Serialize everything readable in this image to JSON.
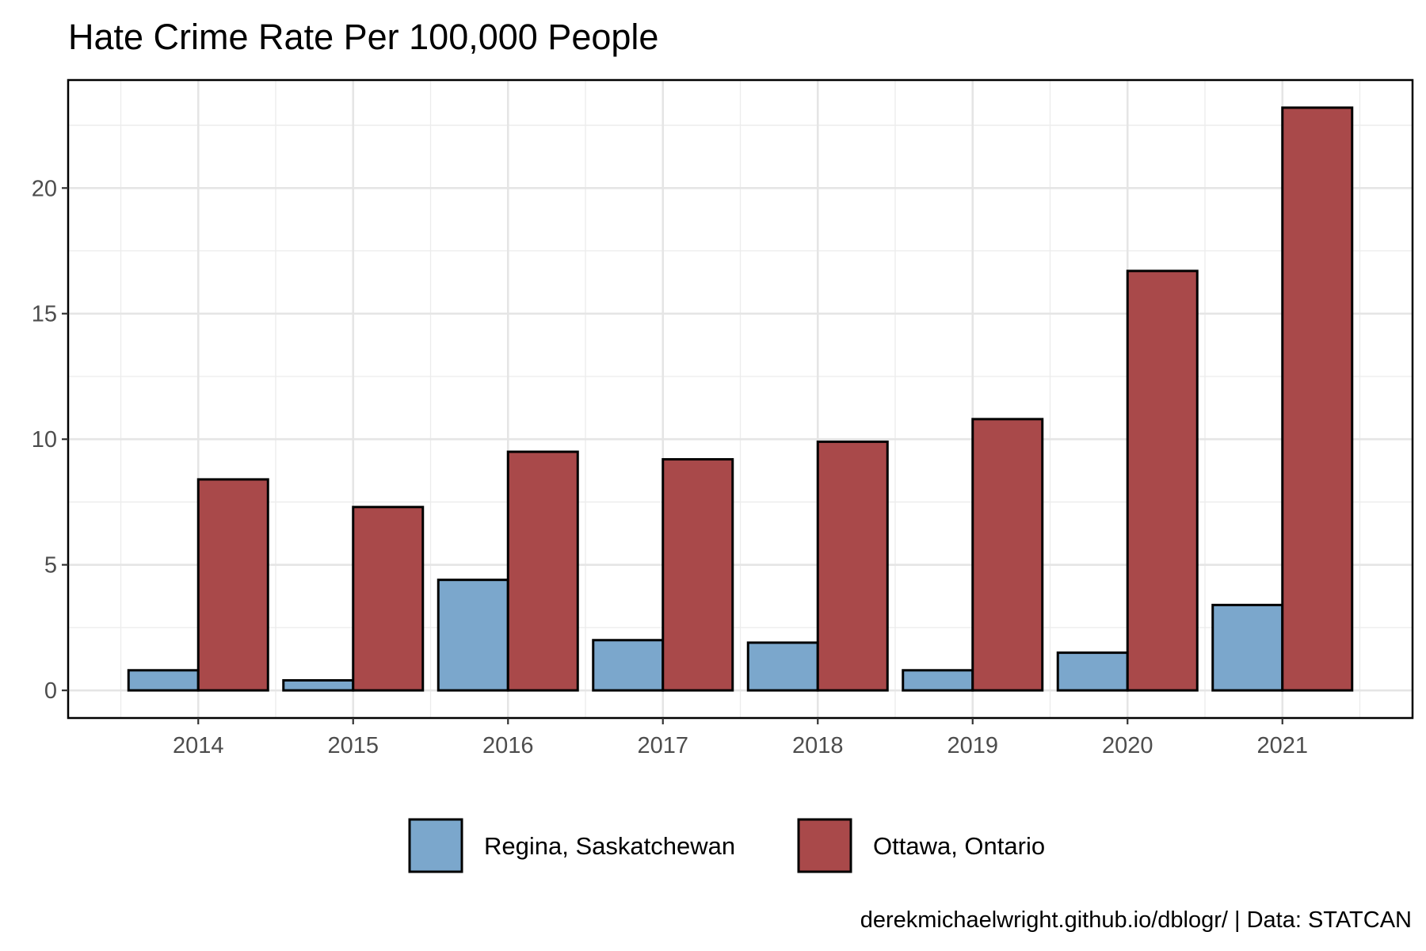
{
  "chart_data": {
    "type": "bar",
    "title": "Hate Crime Rate Per 100,000 People",
    "xlabel": "",
    "ylabel": "",
    "categories": [
      "2014",
      "2015",
      "2016",
      "2017",
      "2018",
      "2019",
      "2020",
      "2021"
    ],
    "series": [
      {
        "name": "Regina, Saskatchewan",
        "color": "#7ba7cc",
        "values": [
          0.8,
          0.4,
          4.4,
          2.0,
          1.9,
          0.8,
          1.5,
          3.4
        ]
      },
      {
        "name": "Ottawa, Ontario",
        "color": "#a9494a",
        "values": [
          8.4,
          7.3,
          9.5,
          9.2,
          9.9,
          10.8,
          16.7,
          23.2
        ]
      }
    ],
    "ylim": [
      -1.1,
      24.3
    ],
    "yticks": [
      0,
      5,
      10,
      15,
      20
    ],
    "grid": true,
    "legend_position": "bottom",
    "caption": "derekmichaelwright.github.io/dblogr/ | Data: STATCAN"
  }
}
